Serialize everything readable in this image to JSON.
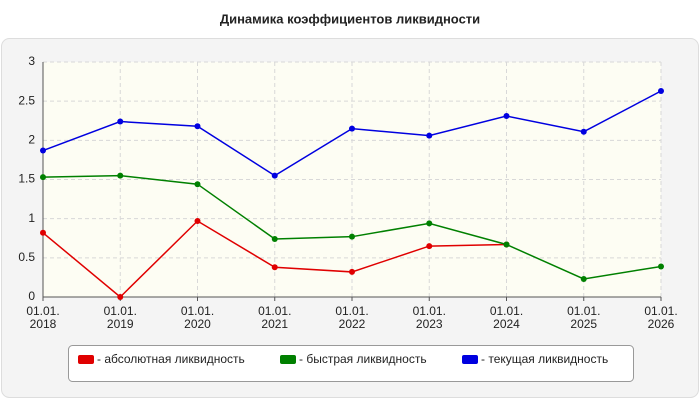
{
  "chart_data": {
    "type": "line",
    "title": "Динамика коэффициентов ликвидности",
    "categories": [
      "01.01. 2018",
      "01.01. 2019",
      "01.01. 2020",
      "01.01. 2021",
      "01.01. 2022",
      "01.01. 2023",
      "01.01. 2024",
      "01.01. 2025",
      "01.01. 2026"
    ],
    "series": [
      {
        "name": "- абсолютная ликвидность",
        "color": "#e00000",
        "values": [
          0.82,
          0.0,
          0.97,
          0.38,
          0.32,
          0.65,
          0.67,
          null,
          null
        ]
      },
      {
        "name": "- быстрая ликвидность",
        "color": "#008000",
        "values": [
          1.53,
          1.55,
          1.44,
          0.74,
          0.77,
          0.94,
          0.67,
          0.23,
          0.39
        ]
      },
      {
        "name": "- текущая ликвидность",
        "color": "#0000e0",
        "values": [
          1.87,
          2.24,
          2.18,
          1.55,
          2.15,
          2.06,
          2.31,
          2.11,
          2.63
        ]
      }
    ],
    "ylim": [
      0,
      3
    ],
    "yticks": [
      0,
      0.5,
      1,
      1.5,
      2,
      2.5,
      3
    ],
    "grid": true,
    "legend": "bottom"
  }
}
